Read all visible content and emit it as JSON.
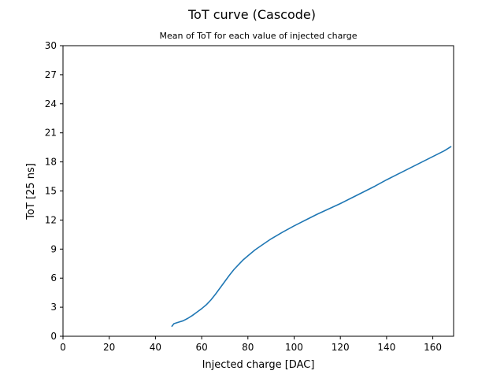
{
  "chart_data": {
    "type": "line",
    "title": "ToT curve (Cascode)",
    "subtitle": "Mean of ToT for each value of injected charge",
    "xlabel": "Injected charge [DAC]",
    "ylabel": "ToT [25 ns]",
    "xlim": [
      0,
      169
    ],
    "ylim": [
      0,
      30
    ],
    "xticks": [
      0,
      20,
      40,
      60,
      80,
      100,
      120,
      140,
      160
    ],
    "yticks": [
      0,
      3,
      6,
      9,
      12,
      15,
      18,
      21,
      24,
      27,
      30
    ],
    "grid": false,
    "series": [
      {
        "color": "#1f77b4",
        "x": [
          47,
          48,
          50,
          52,
          54,
          56,
          58,
          60,
          62,
          64,
          66,
          68,
          70,
          72,
          74,
          76,
          78,
          80,
          83,
          86,
          90,
          95,
          100,
          105,
          110,
          115,
          120,
          125,
          130,
          135,
          140,
          145,
          150,
          155,
          160,
          165,
          168
        ],
        "y": [
          1.0,
          1.3,
          1.45,
          1.6,
          1.85,
          2.15,
          2.5,
          2.85,
          3.25,
          3.75,
          4.35,
          5.0,
          5.65,
          6.3,
          6.9,
          7.4,
          7.9,
          8.3,
          8.9,
          9.4,
          10.05,
          10.75,
          11.4,
          12.0,
          12.6,
          13.15,
          13.7,
          14.3,
          14.9,
          15.5,
          16.15,
          16.75,
          17.35,
          17.95,
          18.55,
          19.15,
          19.6
        ]
      }
    ]
  }
}
